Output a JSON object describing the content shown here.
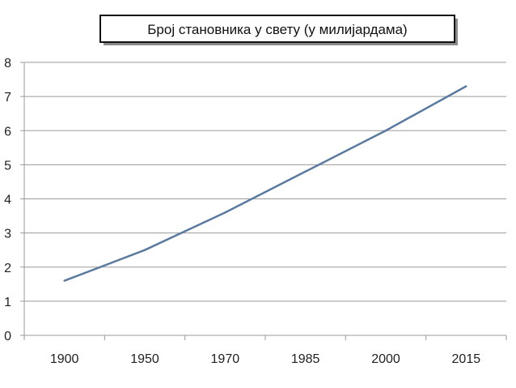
{
  "chart_data": {
    "type": "line",
    "title": "Број становника у свету (у милијардама)",
    "xlabel": "",
    "ylabel": "",
    "categories": [
      "1900",
      "1950",
      "1970",
      "1985",
      "2000",
      "2015"
    ],
    "series": [
      {
        "values": [
          1.6,
          2.5,
          3.6,
          4.8,
          6.0,
          7.3
        ]
      }
    ],
    "ylim": [
      0,
      8
    ],
    "yticks": [
      "0",
      "1",
      "2",
      "3",
      "4",
      "5",
      "6",
      "7",
      "8"
    ],
    "grid": true,
    "legend": "none",
    "colors": {
      "line": "#5b7aa0",
      "grid": "#9a9a9a",
      "title_border": "#111111",
      "title_shadow": "#8a8a8a"
    }
  }
}
